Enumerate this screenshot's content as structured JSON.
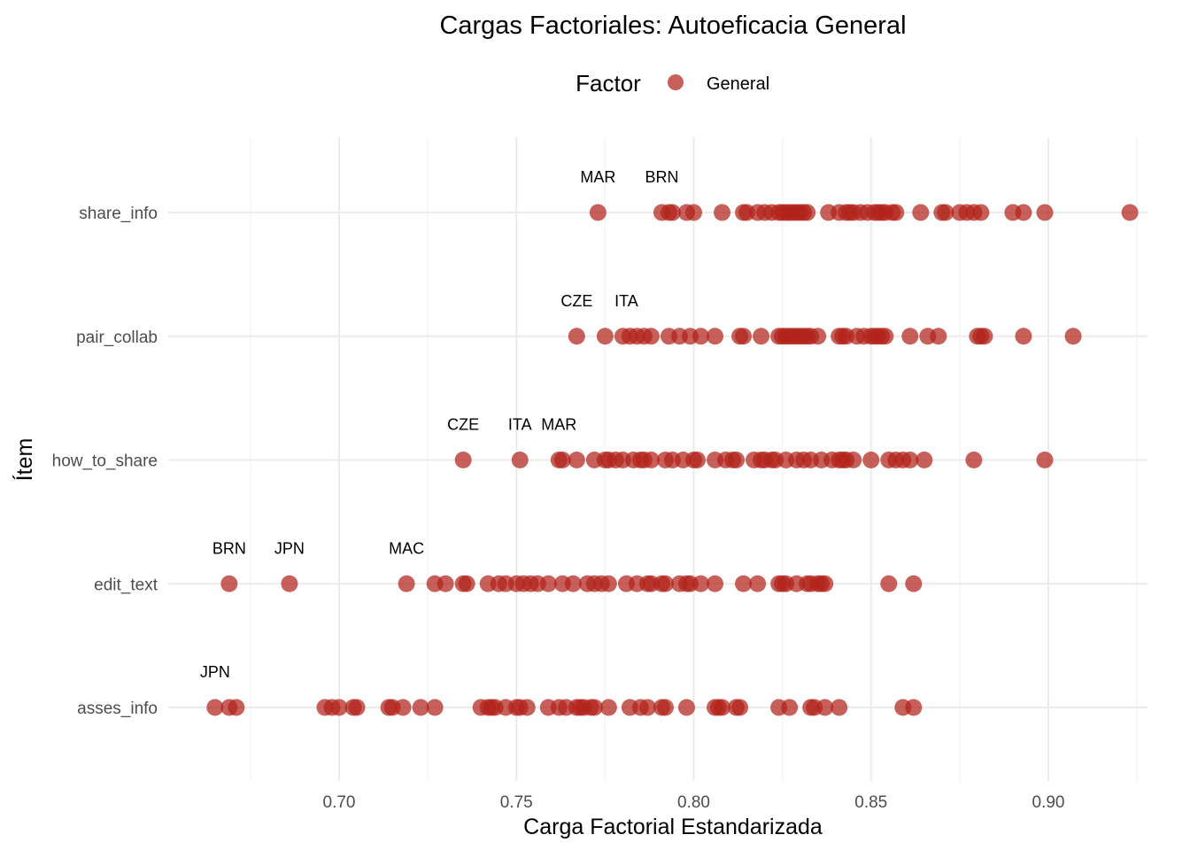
{
  "chart_data": {
    "type": "scatter",
    "title": "Cargas Factoriales: Autoeficacia General",
    "xlabel": "Carga Factorial Estandarizada",
    "ylabel": "Ítem",
    "xlim": [
      0.655,
      0.928
    ],
    "x_ticks": [
      "0.70",
      "0.75",
      "0.80",
      "0.85",
      "0.90"
    ],
    "x_tick_values": [
      0.7,
      0.75,
      0.8,
      0.85,
      0.9
    ],
    "categories": [
      "asses_info",
      "edit_text",
      "how_to_share",
      "pair_collab",
      "share_info"
    ],
    "grid": true,
    "legend": {
      "title": "Factor",
      "position": "top",
      "entries": [
        {
          "label": "General",
          "color": "#b2221a"
        }
      ]
    },
    "point_color": "#b2221a",
    "series": [
      {
        "category": "share_info",
        "values": [
          0.773,
          0.791,
          0.793,
          0.794,
          0.798,
          0.8,
          0.808,
          0.814,
          0.815,
          0.818,
          0.82,
          0.822,
          0.824,
          0.825,
          0.826,
          0.827,
          0.828,
          0.829,
          0.83,
          0.831,
          0.832,
          0.838,
          0.841,
          0.843,
          0.844,
          0.845,
          0.847,
          0.849,
          0.851,
          0.852,
          0.853,
          0.854,
          0.856,
          0.857,
          0.864,
          0.87,
          0.871,
          0.875,
          0.877,
          0.879,
          0.881,
          0.89,
          0.893,
          0.899,
          0.923
        ]
      },
      {
        "category": "pair_collab",
        "values": [
          0.767,
          0.775,
          0.78,
          0.782,
          0.784,
          0.786,
          0.788,
          0.793,
          0.796,
          0.799,
          0.802,
          0.806,
          0.813,
          0.814,
          0.819,
          0.824,
          0.825,
          0.826,
          0.827,
          0.828,
          0.829,
          0.83,
          0.831,
          0.832,
          0.833,
          0.835,
          0.841,
          0.842,
          0.843,
          0.846,
          0.848,
          0.85,
          0.851,
          0.852,
          0.853,
          0.854,
          0.861,
          0.866,
          0.869,
          0.88,
          0.881,
          0.882,
          0.893,
          0.907
        ]
      },
      {
        "category": "how_to_share",
        "values": [
          0.735,
          0.751,
          0.762,
          0.763,
          0.767,
          0.772,
          0.775,
          0.776,
          0.778,
          0.78,
          0.783,
          0.785,
          0.786,
          0.788,
          0.792,
          0.794,
          0.797,
          0.8,
          0.801,
          0.806,
          0.809,
          0.811,
          0.812,
          0.817,
          0.819,
          0.82,
          0.822,
          0.823,
          0.826,
          0.829,
          0.831,
          0.833,
          0.836,
          0.839,
          0.841,
          0.842,
          0.843,
          0.845,
          0.85,
          0.855,
          0.857,
          0.859,
          0.861,
          0.865,
          0.879,
          0.899
        ]
      },
      {
        "category": "edit_text",
        "values": [
          0.669,
          0.686,
          0.719,
          0.727,
          0.73,
          0.735,
          0.736,
          0.742,
          0.745,
          0.747,
          0.75,
          0.752,
          0.754,
          0.756,
          0.759,
          0.763,
          0.766,
          0.77,
          0.772,
          0.774,
          0.776,
          0.781,
          0.784,
          0.787,
          0.788,
          0.791,
          0.792,
          0.796,
          0.798,
          0.799,
          0.802,
          0.806,
          0.814,
          0.818,
          0.824,
          0.825,
          0.826,
          0.829,
          0.832,
          0.833,
          0.835,
          0.836,
          0.837,
          0.855,
          0.862
        ]
      },
      {
        "category": "asses_info",
        "values": [
          0.665,
          0.669,
          0.671,
          0.696,
          0.698,
          0.7,
          0.704,
          0.705,
          0.714,
          0.715,
          0.718,
          0.723,
          0.727,
          0.74,
          0.742,
          0.743,
          0.744,
          0.747,
          0.75,
          0.751,
          0.753,
          0.759,
          0.762,
          0.764,
          0.767,
          0.768,
          0.769,
          0.771,
          0.772,
          0.776,
          0.782,
          0.785,
          0.787,
          0.791,
          0.792,
          0.798,
          0.806,
          0.807,
          0.808,
          0.812,
          0.813,
          0.824,
          0.827,
          0.833,
          0.834,
          0.837,
          0.841,
          0.859,
          0.862
        ]
      }
    ],
    "annotations": [
      {
        "category": "share_info",
        "x": 0.773,
        "text": "MAR"
      },
      {
        "category": "share_info",
        "x": 0.791,
        "text": "BRN"
      },
      {
        "category": "pair_collab",
        "x": 0.767,
        "text": "CZE"
      },
      {
        "category": "pair_collab",
        "x": 0.781,
        "text": "ITA"
      },
      {
        "category": "how_to_share",
        "x": 0.735,
        "text": "CZE"
      },
      {
        "category": "how_to_share",
        "x": 0.751,
        "text": "ITA"
      },
      {
        "category": "how_to_share",
        "x": 0.762,
        "text": "MAR"
      },
      {
        "category": "edit_text",
        "x": 0.669,
        "text": "BRN"
      },
      {
        "category": "edit_text",
        "x": 0.686,
        "text": "JPN"
      },
      {
        "category": "edit_text",
        "x": 0.719,
        "text": "MAC"
      },
      {
        "category": "asses_info",
        "x": 0.665,
        "text": "JPN"
      }
    ]
  }
}
